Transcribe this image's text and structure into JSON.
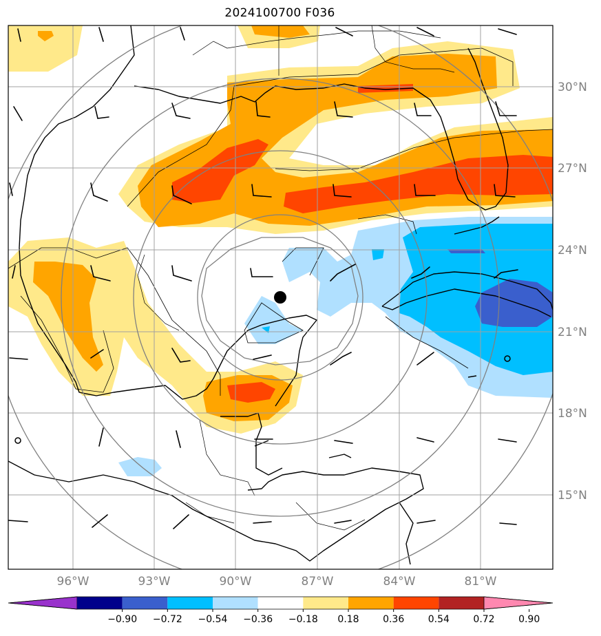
{
  "title": "2024100700 F036",
  "lat_labels": [
    "30°N",
    "27°N",
    "24°N",
    "21°N",
    "18°N",
    "15°N"
  ],
  "lon_labels": [
    "96°W",
    "93°W",
    "90°W",
    "87°W",
    "84°W",
    "81°W"
  ],
  "colorbar": {
    "ticks": [
      "−0.90",
      "−0.72",
      "−0.54",
      "−0.36",
      "−0.18",
      "0.18",
      "0.36",
      "0.54",
      "0.72",
      "0.90"
    ],
    "colors": [
      "#9932cc",
      "#00008b",
      "#3a5fcd",
      "#00bfff",
      "#b0e0ff",
      "#ffffff",
      "#ffe98a",
      "#ffa500",
      "#ff4500",
      "#b22222",
      "#ff88b0"
    ]
  },
  "map": {
    "region": "Gulf of Mexico and Caribbean",
    "center_marker": "storm-center",
    "field_colors": {
      "light_yellow": "#ffe98a",
      "orange": "#ffa500",
      "red_orange": "#ff4500",
      "light_blue": "#b0e0ff",
      "deep_sky_blue": "#00bfff",
      "royal_blue": "#3a5fcd"
    }
  }
}
